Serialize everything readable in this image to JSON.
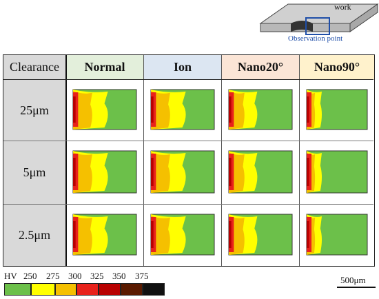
{
  "schematic": {
    "work_label": "work",
    "observation_label": "Observation point"
  },
  "table": {
    "corner_label": "Clearance",
    "columns": [
      {
        "label": "Normal",
        "bg": "#e3efdb"
      },
      {
        "label": "Ion",
        "bg": "#dce6f2"
      },
      {
        "label": "Nano20°",
        "bg": "#fbe5d6"
      },
      {
        "label": "Nano90°",
        "bg": "#fff2cc"
      }
    ],
    "rows": [
      {
        "label": "25μm"
      },
      {
        "label": "5μm"
      },
      {
        "label": "2.5μm"
      }
    ]
  },
  "legend": {
    "hv_label": "HV",
    "ticks": [
      "250",
      "275",
      "300",
      "325",
      "350",
      "375"
    ],
    "colors": [
      "#6cc04a",
      "#ffff00",
      "#f5c000",
      "#e8221b",
      "#b80000",
      "#5a1a00",
      "#111111"
    ]
  },
  "scale_bar": {
    "label": "500μm"
  }
}
